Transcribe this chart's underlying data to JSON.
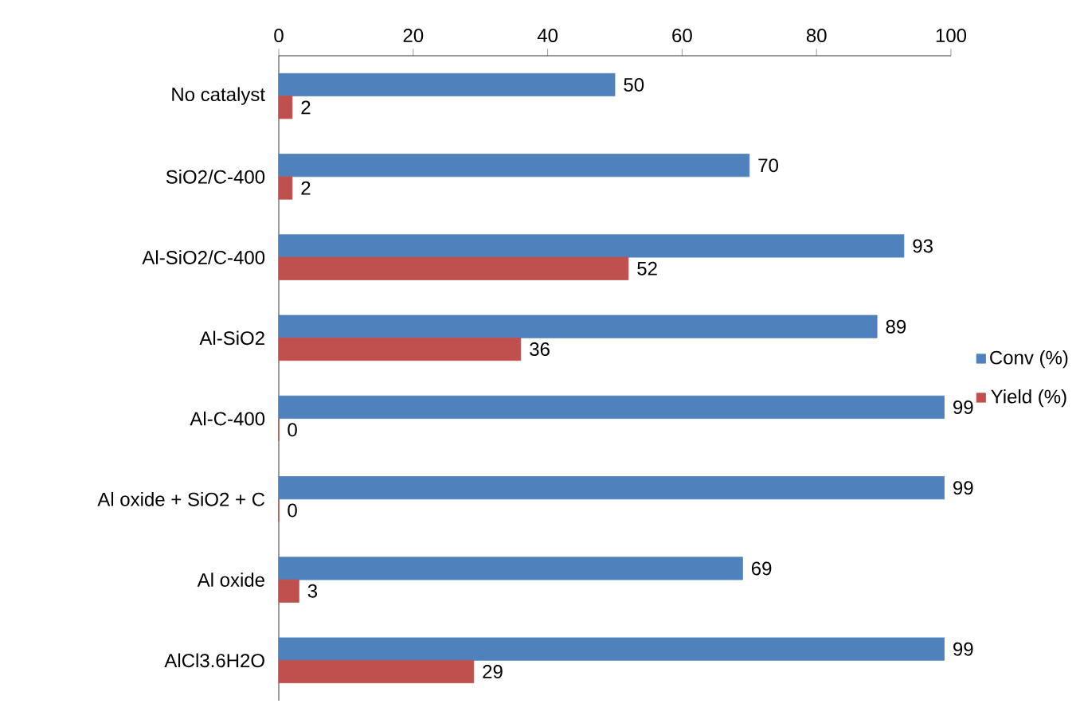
{
  "chart_data": {
    "type": "bar",
    "orientation": "horizontal",
    "categories": [
      "No catalyst",
      "SiO2/C-400",
      "Al-SiO2/C-400",
      "Al-SiO2",
      "Al-C-400",
      "Al oxide + SiO2 + C",
      "Al oxide",
      "AlCl3.6H2O"
    ],
    "series": [
      {
        "name": "Conv (%)",
        "color": "#4f81bd",
        "values": [
          50,
          70,
          93,
          89,
          99,
          99,
          69,
          99
        ]
      },
      {
        "name": "Yield (%)",
        "color": "#c0504d",
        "values": [
          2,
          2,
          52,
          36,
          0,
          0,
          3,
          29
        ]
      }
    ],
    "xlim": [
      0,
      100
    ],
    "xticks": [
      0,
      20,
      40,
      60,
      80,
      100
    ],
    "data_labels": true,
    "legend": "right"
  }
}
